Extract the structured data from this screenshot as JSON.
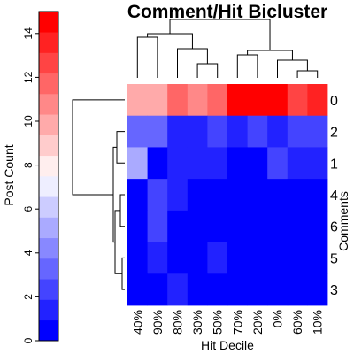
{
  "chart_data": {
    "type": "heatmap",
    "title": "Comment/Hit Bicluster",
    "xlabel": "Hit Decile",
    "ylabel": "Comments",
    "columns": [
      "40%",
      "90%",
      "80%",
      "30%",
      "50%",
      "70%",
      "20%",
      "0%",
      "60%",
      "10%"
    ],
    "rows": [
      "0",
      "2",
      "1",
      "4",
      "6",
      "5",
      "3"
    ],
    "values": [
      [
        10,
        10,
        12,
        11,
        12,
        15,
        15,
        15,
        13,
        14
      ],
      [
        3,
        3,
        1,
        1,
        2,
        1,
        2,
        1,
        2,
        2
      ],
      [
        5,
        0,
        1,
        1,
        1,
        0,
        0,
        2,
        1,
        1
      ],
      [
        0,
        2,
        1,
        0,
        0,
        0,
        0,
        0,
        0,
        0
      ],
      [
        0,
        2,
        0,
        0,
        0,
        0,
        0,
        0,
        0,
        0
      ],
      [
        0,
        1,
        0,
        0,
        1,
        0,
        0,
        0,
        0,
        0
      ],
      [
        0,
        0,
        1,
        0,
        0,
        0,
        0,
        0,
        0,
        0
      ]
    ],
    "colorbar": {
      "label": "Post Count",
      "range": [
        0,
        15
      ],
      "ticks": [
        0,
        2,
        4,
        6,
        8,
        10,
        12,
        14
      ],
      "low_color": "#0000ff",
      "mid_color": "#ffffff",
      "high_color": "#ff0000",
      "levels": 16
    }
  }
}
